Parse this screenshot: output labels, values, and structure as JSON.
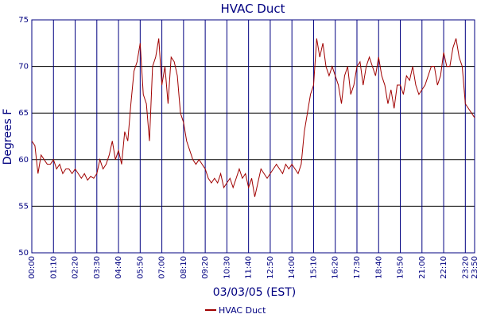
{
  "chart_data": {
    "type": "line",
    "title": "HVAC Duct",
    "x_label": "03/03/05 (EST)",
    "y_label": "Degrees F",
    "categories": [
      "00:00",
      null,
      null,
      null,
      null,
      null,
      null,
      "01:10",
      null,
      null,
      null,
      null,
      null,
      null,
      "02:20",
      null,
      null,
      null,
      null,
      null,
      null,
      "03:30",
      null,
      null,
      null,
      null,
      null,
      null,
      "04:40",
      null,
      null,
      null,
      null,
      null,
      null,
      "05:50",
      null,
      null,
      null,
      null,
      null,
      null,
      "07:00",
      null,
      null,
      null,
      null,
      null,
      null,
      "08:10",
      null,
      null,
      null,
      null,
      null,
      null,
      "09:20",
      null,
      null,
      null,
      null,
      null,
      null,
      "10:30",
      null,
      null,
      null,
      null,
      null,
      null,
      "11:40",
      null,
      null,
      null,
      null,
      null,
      null,
      "12:50",
      null,
      null,
      null,
      null,
      null,
      null,
      "14:00",
      null,
      null,
      null,
      null,
      null,
      null,
      "15:10",
      null,
      null,
      null,
      null,
      null,
      null,
      "16:20",
      null,
      null,
      null,
      null,
      null,
      null,
      "17:30",
      null,
      null,
      null,
      null,
      null,
      null,
      "18:40",
      null,
      null,
      null,
      null,
      null,
      null,
      "19:50",
      null,
      null,
      null,
      null,
      null,
      null,
      "21:00",
      null,
      null,
      null,
      null,
      null,
      null,
      "22:10",
      null,
      null,
      null,
      null,
      null,
      null,
      "23:20",
      null,
      null,
      "23:50"
    ],
    "series": [
      {
        "name": "HVAC Duct",
        "color": "#a00000",
        "values": [
          62,
          61.5,
          58.5,
          60.5,
          60,
          59.5,
          59.5,
          60,
          59,
          59.5,
          58.5,
          59,
          59,
          58.5,
          59,
          58.5,
          58,
          58.5,
          57.8,
          58.2,
          58,
          58.5,
          60,
          59,
          59.5,
          60.5,
          62,
          60,
          61,
          59.5,
          63,
          62,
          66,
          69.5,
          70.5,
          72.5,
          67,
          66,
          62,
          70,
          71,
          73,
          68,
          70,
          66,
          71,
          70.5,
          69,
          65,
          64,
          62,
          61,
          60,
          59.5,
          60,
          59.5,
          59,
          58,
          57.5,
          58,
          57.5,
          58.5,
          57,
          57.5,
          58,
          57,
          58,
          59,
          58,
          58.5,
          57,
          58,
          56,
          57.5,
          59,
          58.5,
          58,
          58.5,
          59,
          59.5,
          59,
          58.5,
          59.5,
          59,
          59.5,
          59,
          58.5,
          59.5,
          63,
          65,
          67,
          68,
          73,
          71,
          72.5,
          70,
          69,
          70,
          69,
          68,
          66,
          69,
          70,
          67,
          68,
          70,
          70.5,
          68,
          70,
          71,
          70,
          69,
          71,
          69,
          68,
          66,
          67.5,
          65.5,
          68,
          68,
          67,
          69,
          68.5,
          70,
          68,
          67,
          67.5,
          68,
          69,
          70,
          70,
          68,
          69,
          71.5,
          70,
          70,
          72,
          73,
          71,
          70,
          66,
          65.5,
          65,
          64.5
        ]
      }
    ],
    "ylim": [
      50,
      75
    ],
    "yticks": [
      50,
      55,
      60,
      65,
      70,
      75
    ],
    "grid": true
  }
}
